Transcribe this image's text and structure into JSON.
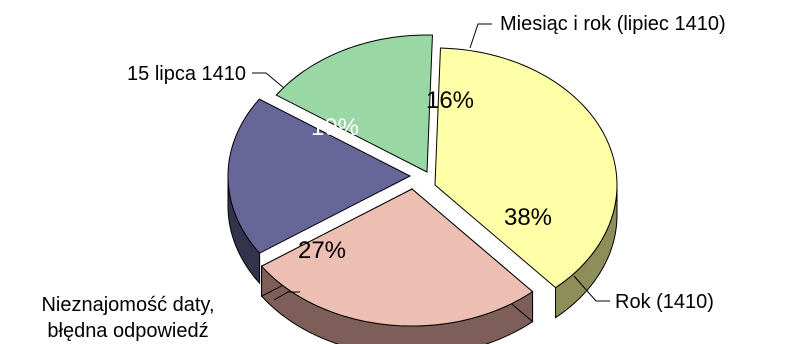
{
  "chart_data": {
    "type": "pie",
    "style": "3d-exploded",
    "title": "",
    "slices": [
      {
        "label": "Rok (1410)",
        "value": 38,
        "value_label": "38%",
        "color": "#FFFFA8",
        "side_color": "#8E8E59"
      },
      {
        "label": "Nieznajomość daty, błędna odpowiedź",
        "label_lines": [
          "Nieznajomość daty,",
          "błędna odpowiedź"
        ],
        "value": 27,
        "value_label": "27%",
        "color": "#EDBFB3",
        "side_color": "#7E5E58"
      },
      {
        "label": "15 lipca 1410",
        "value": 19,
        "value_label": "19%",
        "color": "#666699",
        "side_color": "#33334D"
      },
      {
        "label": "Miesiąc i rok (lipiec 1410)",
        "value": 16,
        "value_label": "16%",
        "color": "#99D8A4",
        "side_color": "#4C6C52"
      }
    ]
  }
}
